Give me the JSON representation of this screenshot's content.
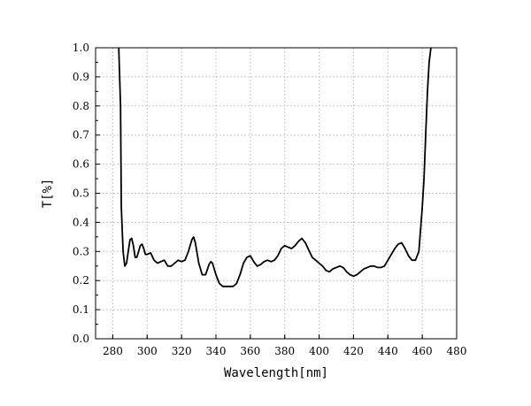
{
  "chart_data": {
    "type": "line",
    "title": "",
    "xlabel": "Wavelength[nm]",
    "ylabel": "T[%]",
    "xlim": [
      270,
      480
    ],
    "ylim": [
      0,
      1.0
    ],
    "xticks": [
      280,
      300,
      320,
      340,
      360,
      380,
      400,
      420,
      440,
      460,
      480
    ],
    "xtick_labels": [
      "280",
      "300",
      "320",
      "340",
      "360",
      "380",
      "400",
      "420",
      "440",
      "460",
      "480"
    ],
    "yticks": [
      0,
      0.1,
      0.2,
      0.3,
      0.4,
      0.5,
      0.6,
      0.7,
      0.8,
      0.9,
      1.0
    ],
    "ytick_labels": [
      "0.0",
      "0.1",
      "0.2",
      "0.3",
      "0.4",
      "0.5",
      "0.6",
      "0.7",
      "0.8",
      "0.9",
      "1.0"
    ],
    "grid": true,
    "legend": "none",
    "series": [
      {
        "color": "#000000",
        "x": [
          283.5,
          284.5,
          285,
          286,
          287,
          288,
          289,
          290,
          291,
          292,
          293,
          294,
          295,
          296,
          297,
          298,
          299,
          300,
          302,
          304,
          306,
          308,
          310,
          312,
          314,
          316,
          318,
          320,
          322,
          324,
          326,
          327,
          328,
          330,
          332,
          334,
          336,
          337,
          338,
          340,
          342,
          344,
          346,
          348,
          350,
          352,
          354,
          356,
          358,
          360,
          362,
          364,
          366,
          368,
          370,
          372,
          374,
          376,
          378,
          380,
          382,
          384,
          386,
          388,
          390,
          392,
          394,
          396,
          398,
          400,
          402,
          404,
          406,
          408,
          410,
          412,
          414,
          416,
          418,
          420,
          422,
          424,
          426,
          428,
          430,
          432,
          434,
          436,
          438,
          440,
          442,
          444,
          446,
          448,
          450,
          452,
          454,
          456,
          458,
          460,
          461,
          462,
          463,
          464,
          465
        ],
        "y": [
          1.0,
          0.8,
          0.45,
          0.3,
          0.25,
          0.26,
          0.3,
          0.34,
          0.345,
          0.32,
          0.28,
          0.28,
          0.3,
          0.32,
          0.325,
          0.31,
          0.29,
          0.29,
          0.295,
          0.27,
          0.26,
          0.265,
          0.27,
          0.25,
          0.25,
          0.26,
          0.27,
          0.265,
          0.27,
          0.3,
          0.34,
          0.35,
          0.33,
          0.26,
          0.22,
          0.22,
          0.255,
          0.265,
          0.26,
          0.22,
          0.19,
          0.18,
          0.18,
          0.18,
          0.18,
          0.19,
          0.22,
          0.26,
          0.28,
          0.285,
          0.265,
          0.25,
          0.255,
          0.265,
          0.27,
          0.265,
          0.27,
          0.285,
          0.31,
          0.32,
          0.315,
          0.31,
          0.32,
          0.335,
          0.345,
          0.33,
          0.305,
          0.28,
          0.27,
          0.26,
          0.25,
          0.235,
          0.23,
          0.24,
          0.245,
          0.25,
          0.245,
          0.23,
          0.22,
          0.215,
          0.22,
          0.23,
          0.24,
          0.245,
          0.25,
          0.25,
          0.245,
          0.245,
          0.25,
          0.27,
          0.29,
          0.31,
          0.325,
          0.33,
          0.31,
          0.285,
          0.27,
          0.27,
          0.3,
          0.45,
          0.55,
          0.7,
          0.85,
          0.95,
          1.0
        ]
      }
    ]
  }
}
